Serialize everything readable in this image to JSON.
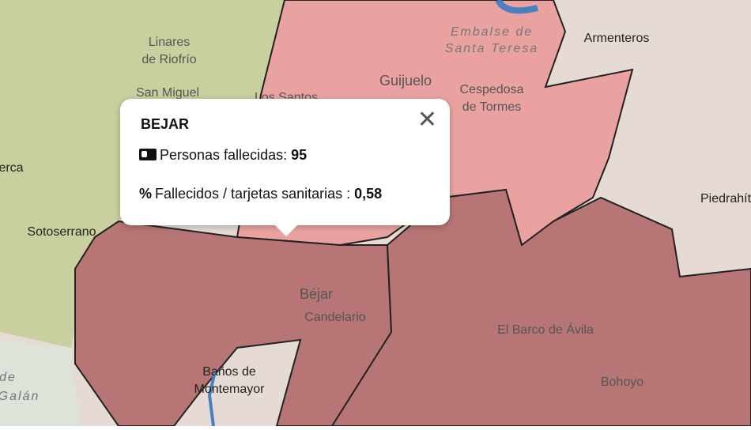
{
  "popup": {
    "title": "BEJAR",
    "rows": [
      {
        "icon": "",
        "label": "Personas fallecidas: ",
        "value": "95"
      },
      {
        "icon": "%",
        "label": "Fallecidos / tarjetas sanitarias : ",
        "value": "0,58"
      }
    ]
  },
  "map": {
    "places": [
      "Linares",
      "de Riofrío",
      "San Miguel",
      "Los Santos",
      "Guijuelo",
      "Embalse de",
      "Santa Teresa",
      "Cespedosa",
      "de Tormes",
      "Armenteros",
      "Piedrahít",
      "erca",
      "Sotoserrano",
      "Béjar",
      "Candelario",
      "El Barco de Ávila",
      "Bohoyo",
      "Baños de",
      "Montemayor",
      "de",
      "Galán"
    ]
  }
}
